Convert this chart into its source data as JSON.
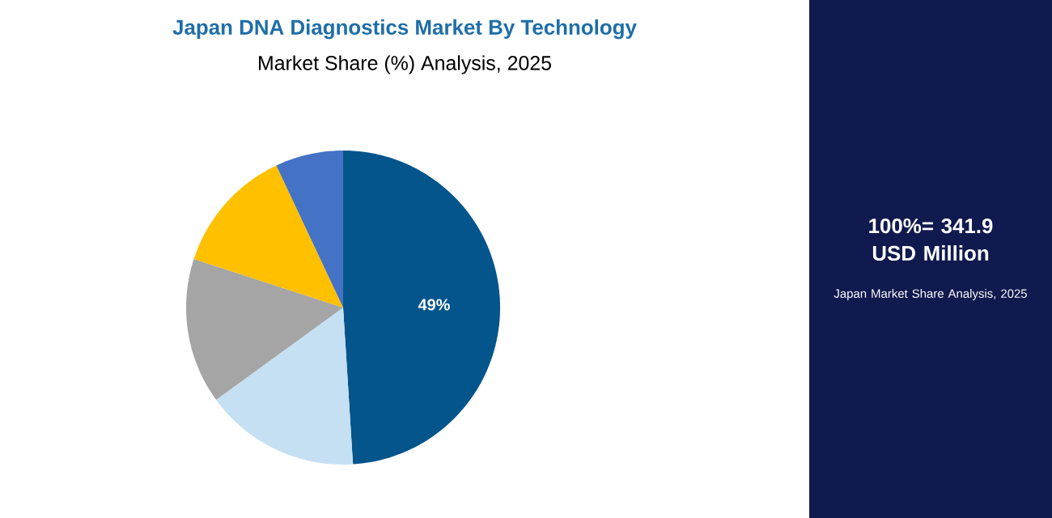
{
  "chart_data": {
    "type": "pie",
    "title": "Japan DNA Diagnostics Market By Technology",
    "subtitle": "Market Share (%) Analysis, 2025",
    "categories": [
      null,
      null,
      null,
      null,
      null
    ],
    "values": [
      49,
      16,
      15,
      13,
      7
    ],
    "colors": [
      "#03558b",
      "#c5e0f3",
      "#a5a5a5",
      "#ffc000",
      "#4472c4"
    ],
    "value_labels": [
      "49%",
      null,
      null,
      null,
      null
    ],
    "annotations": [
      "100%= 341.9 USD Million",
      "Japan Market Share Analysis, 2025"
    ]
  }
}
